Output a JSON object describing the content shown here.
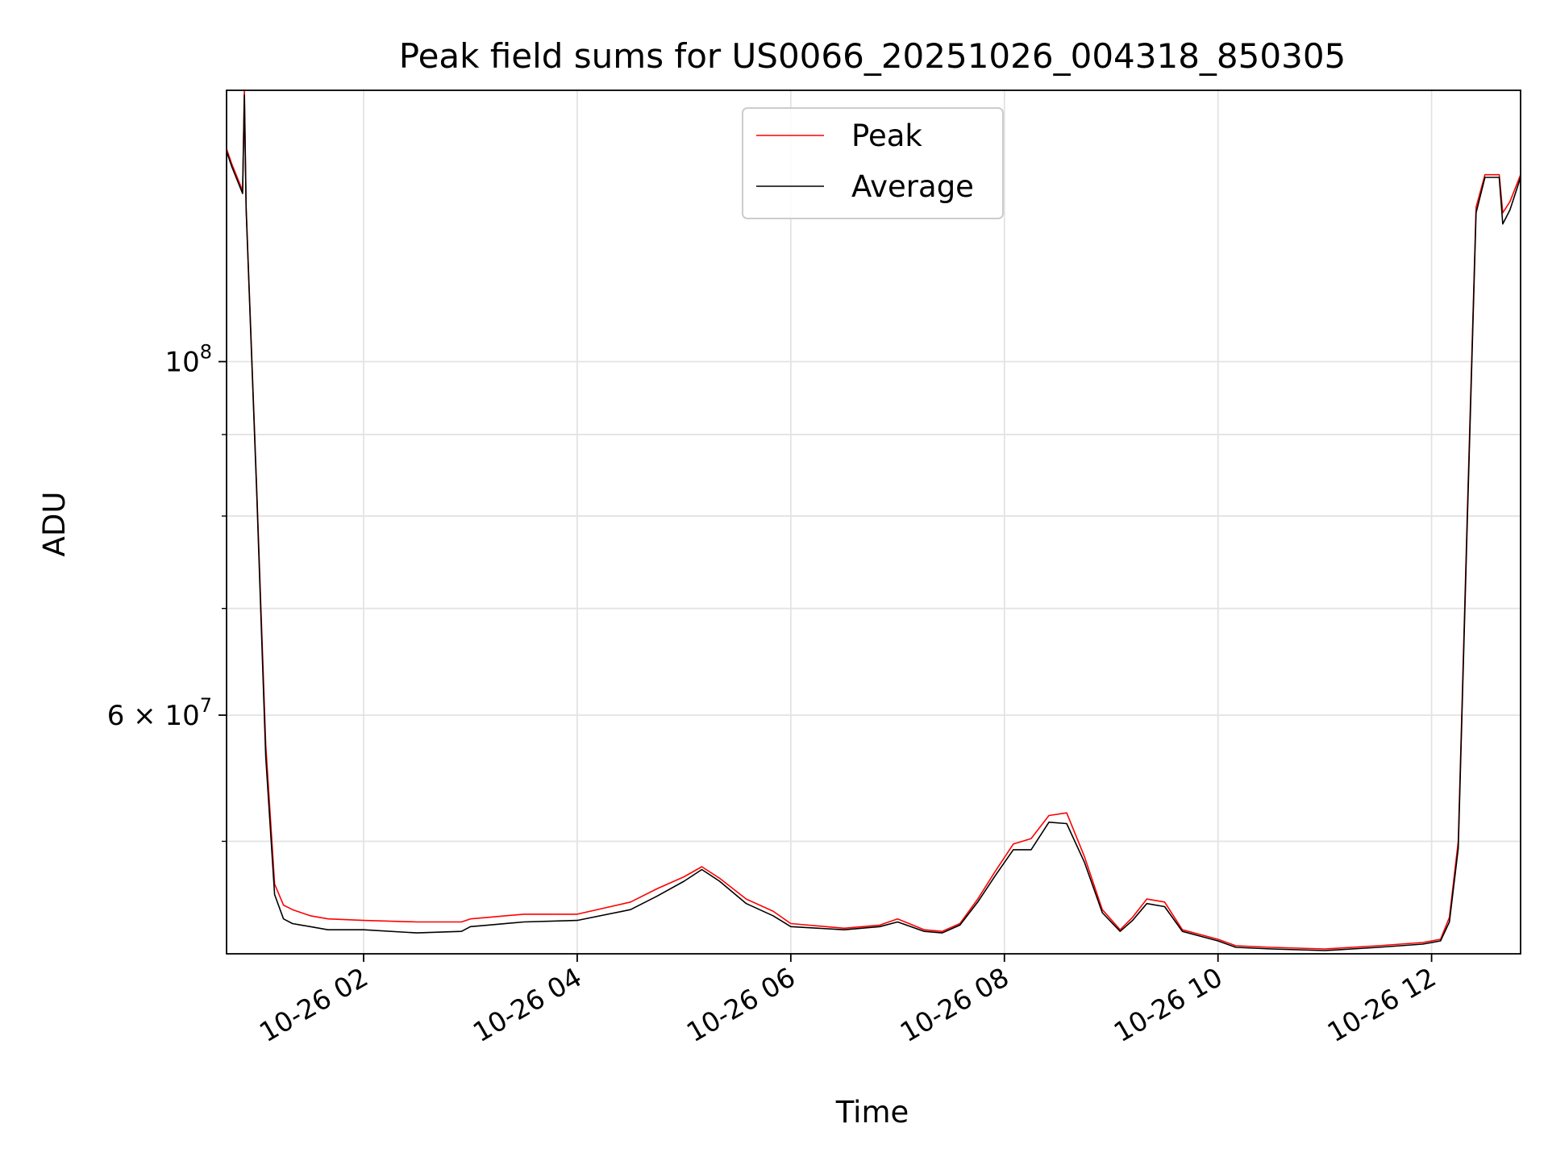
{
  "chart_data": {
    "type": "line",
    "title": "Peak field sums for US0066_20251026_004318_850305",
    "xlabel": "Time",
    "ylabel": "ADU",
    "yscale": "log",
    "xlim": [
      "2025-10-26 00:43",
      "2025-10-26 12:50"
    ],
    "ylim": [
      42500000,
      148000000
    ],
    "grid": true,
    "legend_position": "top-center",
    "x_ticks": [
      {
        "value": "2025-10-26 02:00",
        "label": "10-26 02"
      },
      {
        "value": "2025-10-26 04:00",
        "label": "10-26 04"
      },
      {
        "value": "2025-10-26 06:00",
        "label": "10-26 06"
      },
      {
        "value": "2025-10-26 08:00",
        "label": "10-26 08"
      },
      {
        "value": "2025-10-26 10:00",
        "label": "10-26 10"
      },
      {
        "value": "2025-10-26 12:00",
        "label": "10-26 12"
      }
    ],
    "y_major_ticks": [
      {
        "value": 100000000,
        "base": "10",
        "exp": "8",
        "mantissa": ""
      },
      {
        "value": 60000000,
        "base": "10",
        "exp": "7",
        "mantissa": "6"
      }
    ],
    "y_minor_ticks": [
      50000000,
      70000000,
      80000000,
      90000000
    ],
    "series": [
      {
        "name": "Peak",
        "color": "#ff0000",
        "x": [
          "2025-10-26 00:43",
          "2025-10-26 00:46",
          "2025-10-26 00:52",
          "2025-10-26 00:53",
          "2025-10-26 00:54",
          "2025-10-26 01:00",
          "2025-10-26 01:05",
          "2025-10-26 01:10",
          "2025-10-26 01:15",
          "2025-10-26 01:20",
          "2025-10-26 01:25",
          "2025-10-26 01:30",
          "2025-10-26 01:40",
          "2025-10-26 02:00",
          "2025-10-26 02:30",
          "2025-10-26 02:55",
          "2025-10-26 03:00",
          "2025-10-26 03:10",
          "2025-10-26 03:30",
          "2025-10-26 04:00",
          "2025-10-26 04:30",
          "2025-10-26 04:45",
          "2025-10-26 05:00",
          "2025-10-26 05:10",
          "2025-10-26 05:20",
          "2025-10-26 05:35",
          "2025-10-26 05:50",
          "2025-10-26 06:00",
          "2025-10-26 06:30",
          "2025-10-26 06:50",
          "2025-10-26 07:00",
          "2025-10-26 07:15",
          "2025-10-26 07:25",
          "2025-10-26 07:35",
          "2025-10-26 07:45",
          "2025-10-26 07:55",
          "2025-10-26 08:05",
          "2025-10-26 08:15",
          "2025-10-26 08:25",
          "2025-10-26 08:35",
          "2025-10-26 08:45",
          "2025-10-26 08:55",
          "2025-10-26 09:05",
          "2025-10-26 09:12",
          "2025-10-26 09:20",
          "2025-10-26 09:30",
          "2025-10-26 09:40",
          "2025-10-26 09:50",
          "2025-10-26 10:00",
          "2025-10-26 10:10",
          "2025-10-26 10:30",
          "2025-10-26 11:00",
          "2025-10-26 11:30",
          "2025-10-26 11:55",
          "2025-10-26 12:05",
          "2025-10-26 12:10",
          "2025-10-26 12:15",
          "2025-10-26 12:20",
          "2025-10-26 12:25",
          "2025-10-26 12:30",
          "2025-10-26 12:38",
          "2025-10-26 12:40",
          "2025-10-26 12:44",
          "2025-10-26 12:50"
        ],
        "y": [
          136000000,
          133000000,
          128000000,
          148000000,
          125000000,
          83000000,
          57500000,
          47000000,
          45600000,
          45300000,
          45100000,
          44900000,
          44700000,
          44600000,
          44500000,
          44500000,
          44700000,
          44800000,
          45000000,
          45000000,
          45800000,
          46700000,
          47500000,
          48200000,
          47400000,
          46000000,
          45200000,
          44400000,
          44100000,
          44300000,
          44700000,
          44000000,
          43900000,
          44400000,
          46000000,
          47900000,
          49800000,
          50200000,
          51900000,
          52100000,
          48900000,
          45300000,
          44000000,
          44800000,
          46000000,
          45800000,
          44000000,
          43700000,
          43400000,
          43000000,
          42900000,
          42800000,
          43000000,
          43200000,
          43400000,
          44800000,
          50000000,
          80000000,
          125000000,
          131000000,
          131000000,
          124000000,
          126000000,
          131000000
        ]
      },
      {
        "name": "Average",
        "color": "#000000",
        "x": [
          "2025-10-26 00:43",
          "2025-10-26 00:46",
          "2025-10-26 00:52",
          "2025-10-26 00:53",
          "2025-10-26 00:54",
          "2025-10-26 01:00",
          "2025-10-26 01:05",
          "2025-10-26 01:10",
          "2025-10-26 01:15",
          "2025-10-26 01:20",
          "2025-10-26 01:25",
          "2025-10-26 01:30",
          "2025-10-26 01:40",
          "2025-10-26 02:00",
          "2025-10-26 02:30",
          "2025-10-26 02:55",
          "2025-10-26 03:00",
          "2025-10-26 03:10",
          "2025-10-26 03:30",
          "2025-10-26 04:00",
          "2025-10-26 04:30",
          "2025-10-26 04:45",
          "2025-10-26 05:00",
          "2025-10-26 05:10",
          "2025-10-26 05:20",
          "2025-10-26 05:35",
          "2025-10-26 05:50",
          "2025-10-26 06:00",
          "2025-10-26 06:30",
          "2025-10-26 06:50",
          "2025-10-26 07:00",
          "2025-10-26 07:15",
          "2025-10-26 07:25",
          "2025-10-26 07:35",
          "2025-10-26 07:45",
          "2025-10-26 07:55",
          "2025-10-26 08:05",
          "2025-10-26 08:15",
          "2025-10-26 08:25",
          "2025-10-26 08:35",
          "2025-10-26 08:45",
          "2025-10-26 08:55",
          "2025-10-26 09:05",
          "2025-10-26 09:12",
          "2025-10-26 09:20",
          "2025-10-26 09:30",
          "2025-10-26 09:40",
          "2025-10-26 09:50",
          "2025-10-26 10:00",
          "2025-10-26 10:10",
          "2025-10-26 10:30",
          "2025-10-26 11:00",
          "2025-10-26 11:30",
          "2025-10-26 11:55",
          "2025-10-26 12:05",
          "2025-10-26 12:10",
          "2025-10-26 12:15",
          "2025-10-26 12:20",
          "2025-10-26 12:25",
          "2025-10-26 12:30",
          "2025-10-26 12:38",
          "2025-10-26 12:40",
          "2025-10-26 12:44",
          "2025-10-26 12:50"
        ],
        "y": [
          135500000,
          132500000,
          127500000,
          147000000,
          124500000,
          82500000,
          56500000,
          46300000,
          44700000,
          44400000,
          44300000,
          44200000,
          44000000,
          44000000,
          43800000,
          43900000,
          44200000,
          44300000,
          44500000,
          44600000,
          45300000,
          46200000,
          47200000,
          48000000,
          47200000,
          45700000,
          44900000,
          44200000,
          44000000,
          44200000,
          44500000,
          43900000,
          43800000,
          44300000,
          45800000,
          47600000,
          49400000,
          49400000,
          51400000,
          51300000,
          48500000,
          45100000,
          43900000,
          44600000,
          45700000,
          45500000,
          43900000,
          43600000,
          43300000,
          42900000,
          42800000,
          42700000,
          42900000,
          43100000,
          43300000,
          44500000,
          49500000,
          79000000,
          124000000,
          130500000,
          130500000,
          122000000,
          124500000,
          130500000
        ]
      }
    ]
  }
}
